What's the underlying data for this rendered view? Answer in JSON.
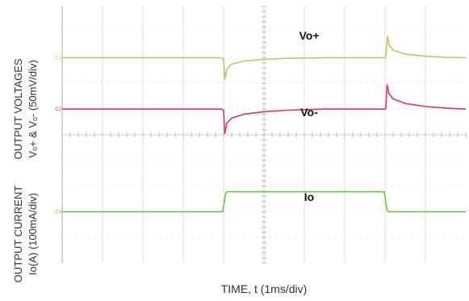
{
  "chart_data": {
    "type": "line",
    "title": "",
    "xlabel": "TIME, t (1ms/div)",
    "ylabel_groups": [
      {
        "line1": "OUTPUT VOLTAGES",
        "line2": "Vₒ+  & Vₒ- (50mV/div)"
      },
      {
        "line1": "OUTPUT CURRENT",
        "line2": "Io(A) (100mA/div)"
      }
    ],
    "x_divisions": 10,
    "y_divisions": 10,
    "grid": true,
    "series": [
      {
        "name": "Vo+",
        "channel_marker": "C1",
        "color": "#c8c16a",
        "baseline_div": 2.0,
        "points": [
          [
            0,
            0
          ],
          [
            3.95,
            0
          ],
          [
            4.0,
            -0.05
          ],
          [
            4.03,
            -0.85
          ],
          [
            4.08,
            -0.45
          ],
          [
            4.2,
            -0.25
          ],
          [
            4.5,
            -0.13
          ],
          [
            5.0,
            -0.06
          ],
          [
            5.6,
            -0.02
          ],
          [
            6.5,
            0
          ],
          [
            8.0,
            0
          ],
          [
            8.02,
            0.05
          ],
          [
            8.06,
            0.85
          ],
          [
            8.1,
            0.5
          ],
          [
            8.2,
            0.3
          ],
          [
            8.5,
            0.14
          ],
          [
            9.0,
            0.06
          ],
          [
            9.5,
            0.02
          ],
          [
            10,
            0
          ]
        ]
      },
      {
        "name": "Vo-",
        "channel_marker": "C2",
        "color": "#e0306e",
        "baseline_div": 4.0,
        "points": [
          [
            0,
            0
          ],
          [
            3.95,
            0
          ],
          [
            4.0,
            -0.05
          ],
          [
            4.03,
            -0.95
          ],
          [
            4.08,
            -0.55
          ],
          [
            4.2,
            -0.35
          ],
          [
            4.5,
            -0.2
          ],
          [
            5.0,
            -0.1
          ],
          [
            5.6,
            -0.04
          ],
          [
            6.5,
            0
          ],
          [
            8.0,
            0
          ],
          [
            8.02,
            0.05
          ],
          [
            8.05,
            0.95
          ],
          [
            8.1,
            0.6
          ],
          [
            8.2,
            0.4
          ],
          [
            8.5,
            0.22
          ],
          [
            9.0,
            0.1
          ],
          [
            9.5,
            0.04
          ],
          [
            10,
            0
          ]
        ]
      },
      {
        "name": "Io",
        "channel_marker": "C4",
        "color": "#6cc24a",
        "baseline_div": 8.0,
        "points": [
          [
            0,
            0
          ],
          [
            3.98,
            0
          ],
          [
            4.05,
            0.72
          ],
          [
            4.1,
            0.78
          ],
          [
            7.98,
            0.78
          ],
          [
            8.05,
            0.05
          ],
          [
            8.1,
            0
          ],
          [
            10,
            0
          ]
        ]
      }
    ],
    "annotations": [
      {
        "text": "Vo+"
      },
      {
        "text": "Vo-"
      },
      {
        "text": "Io"
      }
    ]
  }
}
